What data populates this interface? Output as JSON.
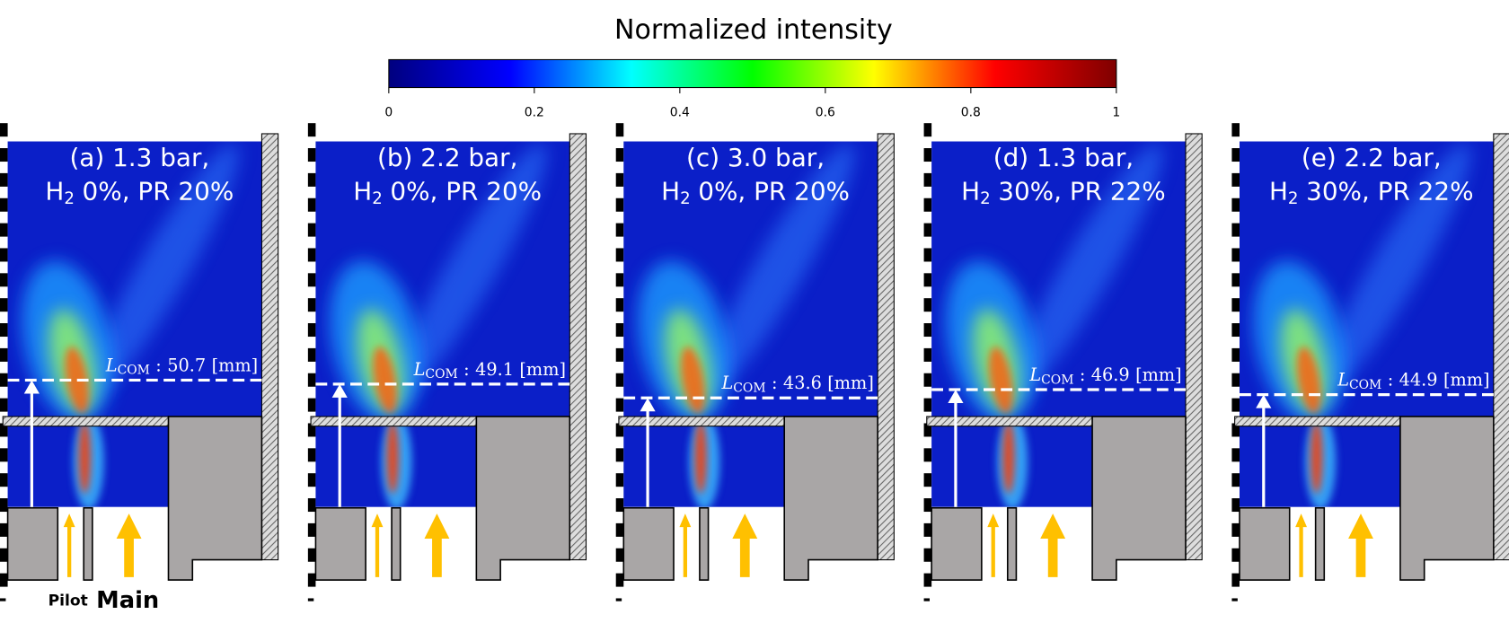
{
  "colorbar": {
    "title": "Normalized intensity",
    "ticks": [
      0,
      0.2,
      0.4,
      0.6,
      0.8,
      1
    ],
    "colors": [
      "#00007f",
      "#0000ff",
      "#00ffff",
      "#00ff00",
      "#ffff00",
      "#ff0000",
      "#7f0000"
    ]
  },
  "panels": [
    {
      "line1": "(a) 1.3 bar,",
      "species": "H",
      "species_sub": "2",
      "line2": "0%, PR 20%",
      "lcom_symbol": "L",
      "lcom_sub": "COM",
      "lcom_sep": ":",
      "lcom_value": 50.7,
      "lcom_unit": "[mm]"
    },
    {
      "line1": "(b) 2.2 bar,",
      "species": "H",
      "species_sub": "2",
      "line2": "0%, PR 20%",
      "lcom_symbol": "L",
      "lcom_sub": "COM",
      "lcom_sep": ":",
      "lcom_value": 49.1,
      "lcom_unit": "[mm]"
    },
    {
      "line1": "(c) 3.0 bar,",
      "species": "H",
      "species_sub": "2",
      "line2": "0%, PR 20%",
      "lcom_symbol": "L",
      "lcom_sub": "COM",
      "lcom_sep": ":",
      "lcom_value": 43.6,
      "lcom_unit": "[mm]"
    },
    {
      "line1": "(d) 1.3 bar,",
      "species": "H",
      "species_sub": "2",
      "line2": "30%, PR 22%",
      "lcom_symbol": "L",
      "lcom_sub": "COM",
      "lcom_sep": ":",
      "lcom_value": 46.9,
      "lcom_unit": "[mm]"
    },
    {
      "line1": "(e) 2.2 bar,",
      "species": "H",
      "species_sub": "2",
      "line2": "30%, PR 22%",
      "lcom_symbol": "L",
      "lcom_sub": "COM",
      "lcom_sep": ":",
      "lcom_value": 44.9,
      "lcom_unit": "[mm]"
    }
  ],
  "labels": {
    "pilot": "Pilot",
    "main": "Main"
  }
}
